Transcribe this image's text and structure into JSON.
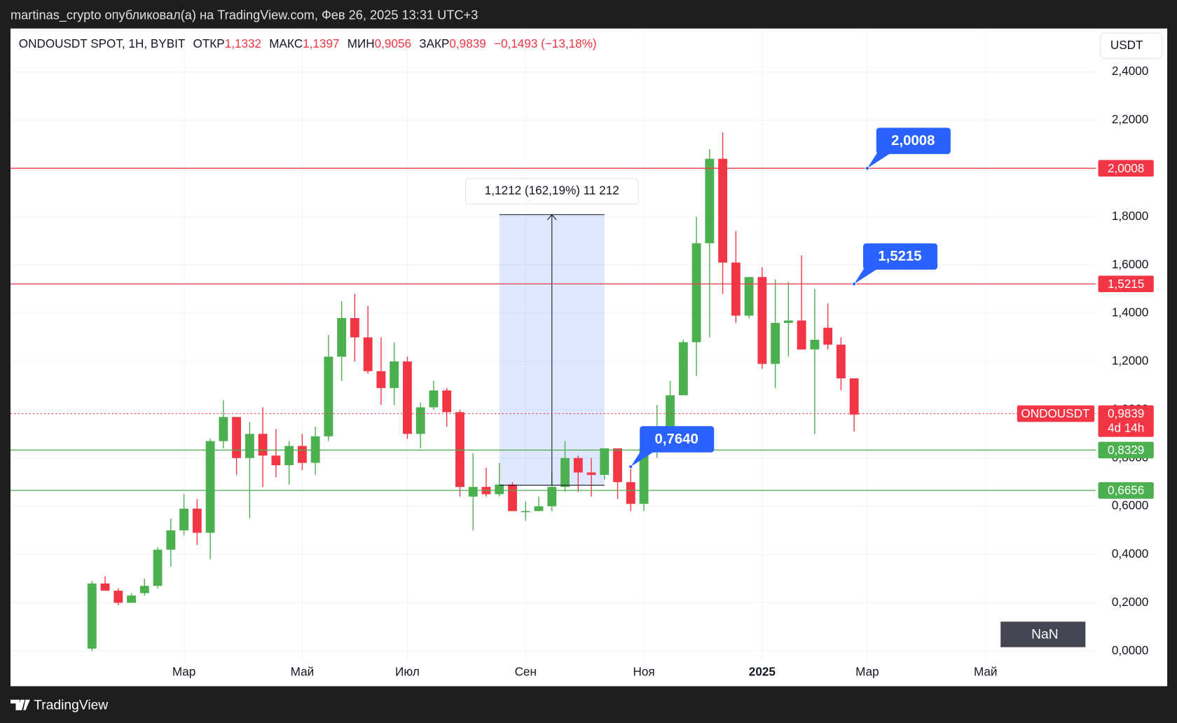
{
  "header": "martinas_crypto опубликовал(а) на TradingView.com, Фев 26, 2025 13:31 UTC+3",
  "footer": "TradingView",
  "chart_data": {
    "type": "candlestick",
    "legend": {
      "symbol": "ONDOUSDT SPOT, 1H, BYBIT",
      "open_label": "ОТКР",
      "open": "1,1332",
      "high_label": "МАКС",
      "high": "1,1397",
      "low_label": "МИН",
      "low": "0,9056",
      "close_label": "ЗАКР",
      "close": "0,9839",
      "change": "−0,1493 (−13,18%)"
    },
    "currency": "USDT",
    "up_color": "#4caf50",
    "down_color": "#f23645",
    "open": [
      0.01,
      0.28,
      0.25,
      0.2,
      0.24,
      0.27,
      0.42,
      0.5,
      0.59,
      0.49,
      0.87,
      0.97,
      0.8,
      0.9,
      0.81,
      0.77,
      0.85,
      0.78,
      0.89,
      1.22,
      1.38,
      1.3,
      1.16,
      1.09,
      1.2,
      0.9,
      1.01,
      1.08,
      0.99,
      0.64,
      0.68,
      0.65,
      0.69,
      0.58,
      0.58,
      0.6,
      0.68,
      0.8,
      0.74,
      0.73,
      0.84,
      0.7,
      0.61,
      0.84,
      0.92,
      1.06,
      1.28,
      1.69,
      2.04,
      1.61,
      1.39,
      1.55,
      1.19,
      1.36,
      1.37,
      1.25,
      1.34,
      1.27,
      1.13
    ],
    "high": [
      0.29,
      0.31,
      0.26,
      0.24,
      0.3,
      0.43,
      0.55,
      0.65,
      0.63,
      0.88,
      1.04,
      0.97,
      0.95,
      1.01,
      0.92,
      0.87,
      0.9,
      0.93,
      1.31,
      1.45,
      1.48,
      1.43,
      1.3,
      1.28,
      1.22,
      1.03,
      1.12,
      1.09,
      1.0,
      0.82,
      0.76,
      0.78,
      0.7,
      0.62,
      0.64,
      0.74,
      0.87,
      0.81,
      0.8,
      0.84,
      0.84,
      0.76,
      0.85,
      1.02,
      1.12,
      1.29,
      1.8,
      2.08,
      2.15,
      1.74,
      1.55,
      1.59,
      1.54,
      1.53,
      1.64,
      1.5,
      1.44,
      1.3,
      1.13
    ],
    "low": [
      0.0,
      0.25,
      0.19,
      0.2,
      0.23,
      0.26,
      0.35,
      0.48,
      0.44,
      0.38,
      0.84,
      0.73,
      0.55,
      0.68,
      0.72,
      0.69,
      0.75,
      0.73,
      0.87,
      1.12,
      1.2,
      1.15,
      1.02,
      1.02,
      0.88,
      0.84,
      1.0,
      0.93,
      0.64,
      0.5,
      0.64,
      0.64,
      0.58,
      0.54,
      0.58,
      0.58,
      0.66,
      0.66,
      0.64,
      0.71,
      0.63,
      0.58,
      0.58,
      0.8,
      0.92,
      1.06,
      1.14,
      1.3,
      1.48,
      1.36,
      1.38,
      1.17,
      1.09,
      1.22,
      1.25,
      0.9,
      1.25,
      1.08,
      0.91
    ],
    "close": [
      0.28,
      0.25,
      0.2,
      0.23,
      0.27,
      0.42,
      0.5,
      0.59,
      0.49,
      0.87,
      0.97,
      0.8,
      0.9,
      0.81,
      0.77,
      0.85,
      0.78,
      0.89,
      1.22,
      1.38,
      1.3,
      1.16,
      1.09,
      1.2,
      0.9,
      1.01,
      1.08,
      0.99,
      0.68,
      0.68,
      0.65,
      0.69,
      0.58,
      0.58,
      0.6,
      0.68,
      0.8,
      0.74,
      0.73,
      0.84,
      0.7,
      0.61,
      0.84,
      0.92,
      1.06,
      1.28,
      1.69,
      2.04,
      1.61,
      1.39,
      1.55,
      1.19,
      1.36,
      1.37,
      1.25,
      1.29,
      1.27,
      1.13,
      0.98
    ],
    "xlim": [
      -6.2,
      76.4
    ],
    "xticks": [
      {
        "value": 7,
        "label": "Мар"
      },
      {
        "value": 16,
        "label": "Май"
      },
      {
        "value": 24,
        "label": "Июл"
      },
      {
        "value": 33,
        "label": "Сен"
      },
      {
        "value": 42,
        "label": "Ноя"
      },
      {
        "value": 51,
        "label": "2025",
        "bold": true
      },
      {
        "value": 59,
        "label": "Мар"
      },
      {
        "value": 68,
        "label": "Май"
      }
    ],
    "ylim": [
      -0.04,
      2.58
    ],
    "yticks": [
      {
        "value": 0,
        "label": "0,0000"
      },
      {
        "value": 0.2,
        "label": "0,2000"
      },
      {
        "value": 0.4,
        "label": "0,4000"
      },
      {
        "value": 0.6,
        "label": "0,6000"
      },
      {
        "value": 0.8,
        "label": "0,8000"
      },
      {
        "value": 1,
        "label": "1,0000"
      },
      {
        "value": 1.2,
        "label": "1,2000"
      },
      {
        "value": 1.4,
        "label": "1,4000"
      },
      {
        "value": 1.6,
        "label": "1,6000"
      },
      {
        "value": 1.8,
        "label": "1,8000"
      },
      {
        "value": 2,
        "label": "2,0000"
      },
      {
        "value": 2.2,
        "label": "2,2000"
      },
      {
        "value": 2.4,
        "label": "2,4000"
      }
    ],
    "grid": true,
    "hlines": [
      {
        "value": 2.0008,
        "label": "2,0008",
        "color": "#f23645"
      },
      {
        "value": 1.5215,
        "label": "1,5215",
        "color": "#f23645"
      },
      {
        "value": 0.8329,
        "label": "0,8329",
        "color": "#4caf50"
      },
      {
        "value": 0.6656,
        "label": "0,6656",
        "color": "#4caf50"
      }
    ],
    "last_price": {
      "value": 0.9839,
      "label": "0,9839",
      "symbol": "ONDOUSDT",
      "countdown": "4d 14h",
      "color": "#f23645"
    },
    "callouts": [
      {
        "x": 59,
        "value": 2.0008,
        "label": "2,0008"
      },
      {
        "x": 58,
        "value": 1.5215,
        "label": "1,5215"
      },
      {
        "x": 41,
        "value": 0.764,
        "label": "0,7640"
      }
    ],
    "measure": {
      "x": [
        31,
        39
      ],
      "from": 0.6874,
      "to": 1.8086,
      "label": "1,1212 (162,19%) 11 212"
    },
    "nan_label": "NaN"
  }
}
